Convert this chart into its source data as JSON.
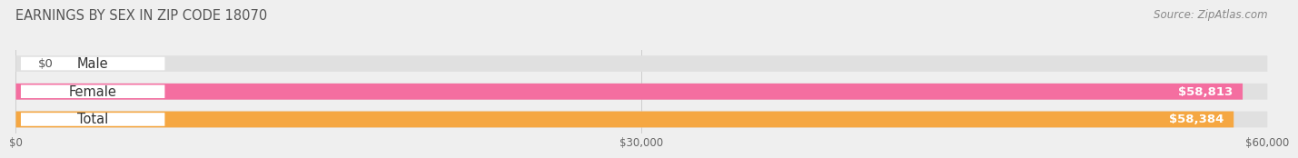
{
  "title": "EARNINGS BY SEX IN ZIP CODE 18070",
  "source": "Source: ZipAtlas.com",
  "categories": [
    "Male",
    "Female",
    "Total"
  ],
  "values": [
    0,
    58813,
    58384
  ],
  "max_value": 60000,
  "bar_colors": [
    "#a8cce8",
    "#f46ea0",
    "#f5a742"
  ],
  "bg_color": "#efefef",
  "bar_bg_color": "#e0e0e0",
  "bar_height": 0.58,
  "value_labels": [
    "$0",
    "$58,813",
    "$58,384"
  ],
  "xtick_labels": [
    "$0",
    "$30,000",
    "$60,000"
  ],
  "xtick_values": [
    0,
    30000,
    60000
  ],
  "title_fontsize": 10.5,
  "source_fontsize": 8.5,
  "label_fontsize": 10.5,
  "value_fontsize": 9.5,
  "tick_fontsize": 8.5
}
